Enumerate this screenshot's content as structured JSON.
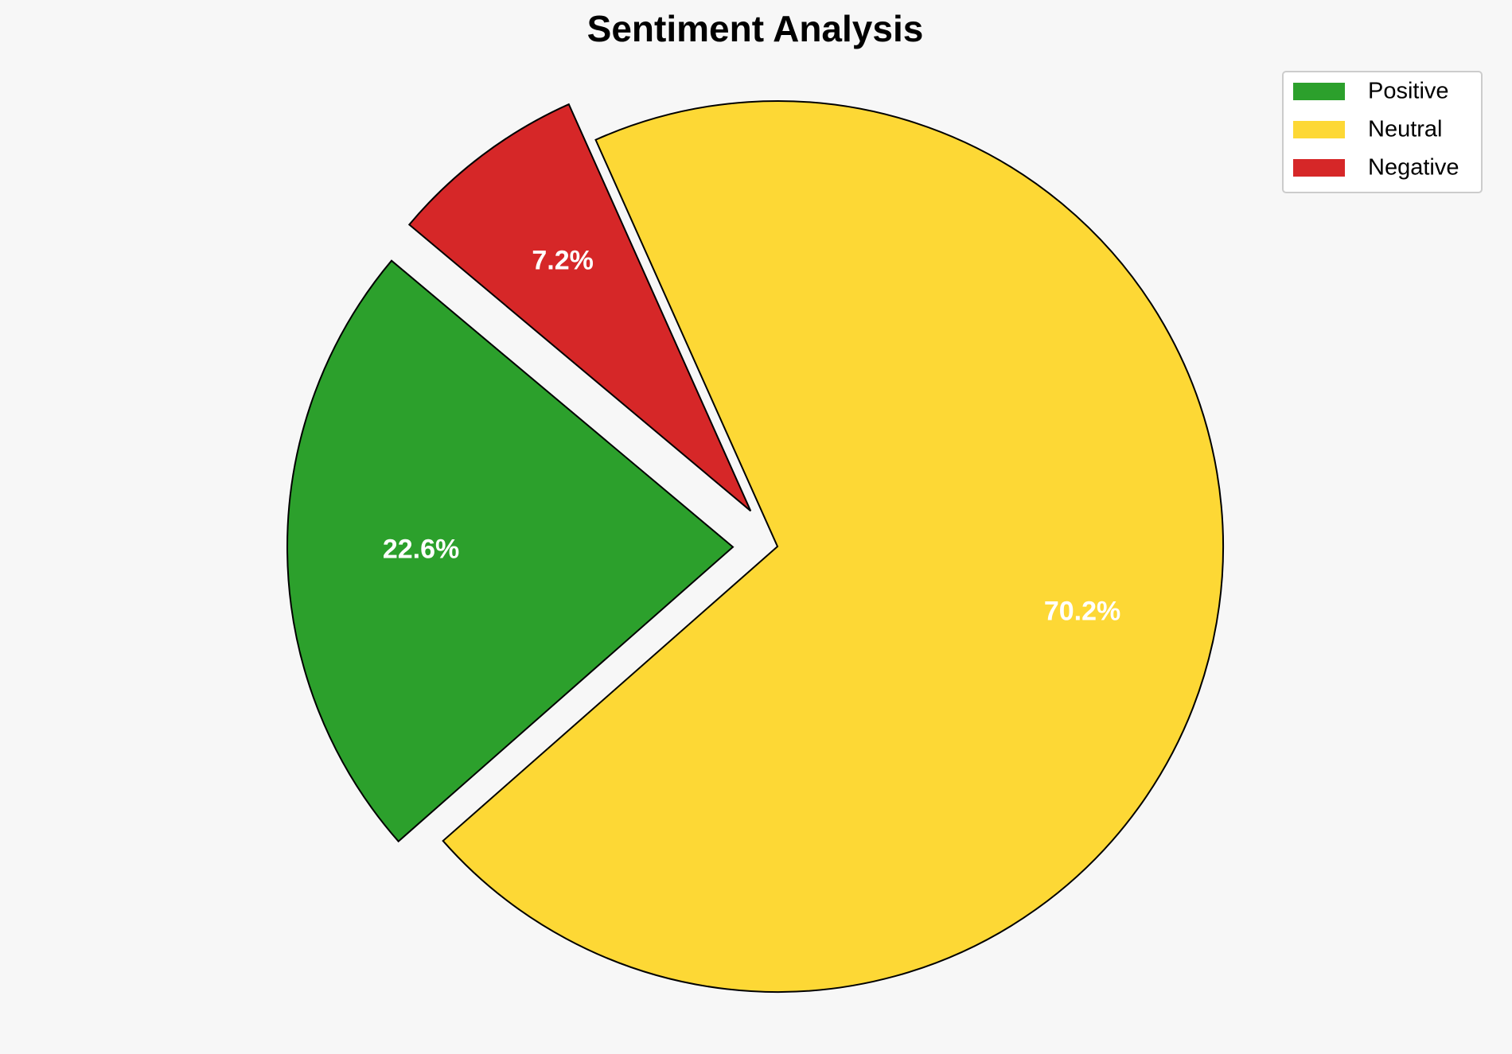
{
  "chart_data": {
    "type": "pie",
    "title": "Sentiment Analysis",
    "categories": [
      "Positive",
      "Neutral",
      "Negative"
    ],
    "values": [
      22.6,
      70.2,
      7.2
    ],
    "value_labels": [
      "22.6%",
      "70.2%",
      "7.2%"
    ],
    "colors": [
      "#2ca02c",
      "#fdd835",
      "#d62728"
    ],
    "explode": [
      0.1,
      0,
      0.1
    ],
    "legend": "upper right"
  }
}
